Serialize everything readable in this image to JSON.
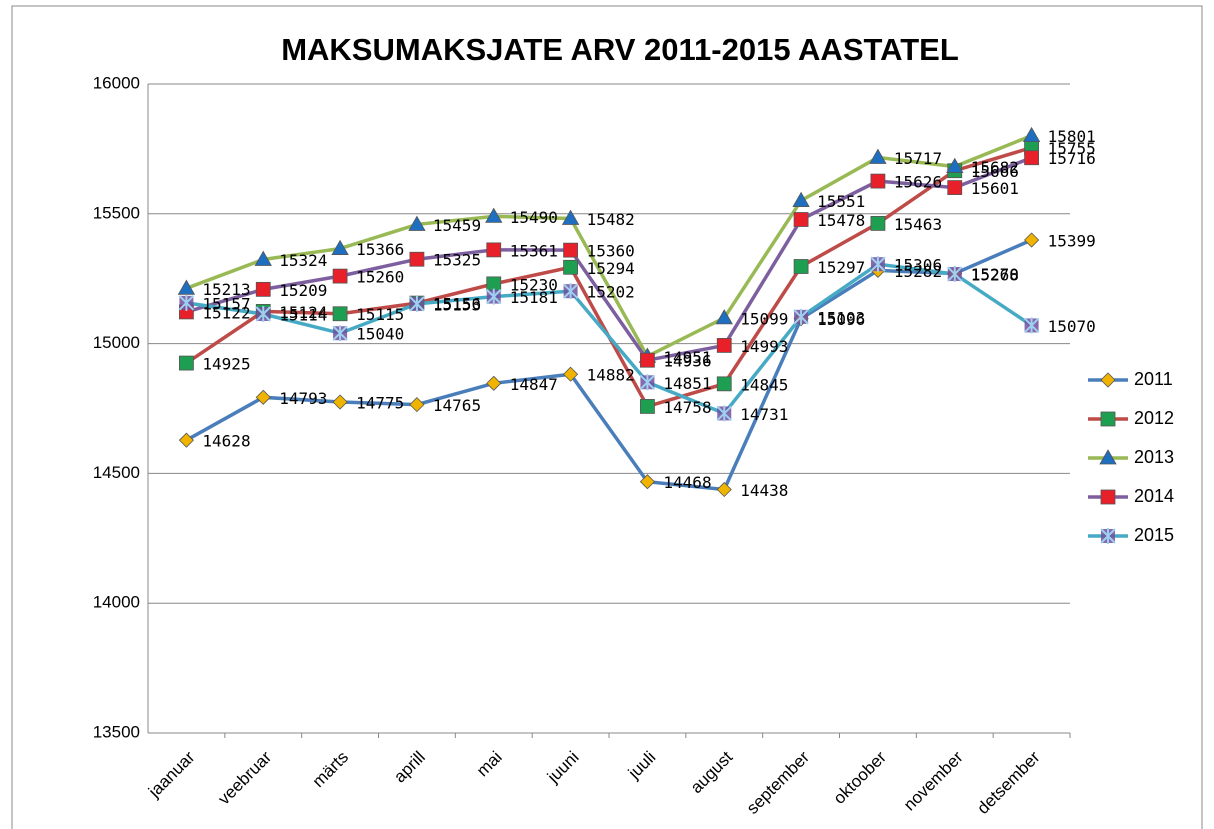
{
  "chart_data": {
    "type": "line",
    "title": "MAKSUMAKSJATE ARV 2011-2015 AASTATEL",
    "categories": [
      "jaanuar",
      "veebruar",
      "märts",
      "aprill",
      "mai",
      "juuni",
      "juuli",
      "august",
      "september",
      "oktoober",
      "november",
      "detsember"
    ],
    "ylim": [
      13500,
      16000
    ],
    "yticks": [
      13500,
      14000,
      14500,
      15000,
      15500,
      16000
    ],
    "grid": true,
    "legend": "right",
    "series": [
      {
        "name": "2011",
        "color": "#4a7ebb",
        "marker": "diamond",
        "marker_color": "#f0b400",
        "values": [
          14628,
          14793,
          14775,
          14765,
          14847,
          14882,
          14468,
          14438,
          15096,
          15282,
          15270,
          15399
        ]
      },
      {
        "name": "2012",
        "color": "#be4b48",
        "marker": "square",
        "marker_color": "#1e9e50",
        "values": [
          14925,
          15124,
          15115,
          15156,
          15230,
          15294,
          14758,
          14845,
          15297,
          15463,
          15666,
          15755
        ]
      },
      {
        "name": "2013",
        "color": "#98b954",
        "marker": "triangle",
        "marker_color": "#1f6fc0",
        "values": [
          15213,
          15324,
          15366,
          15459,
          15490,
          15482,
          14951,
          15099,
          15551,
          15717,
          15682,
          15801
        ]
      },
      {
        "name": "2014",
        "color": "#7d5fa0",
        "marker": "square",
        "marker_color": "#e8202a",
        "values": [
          15122,
          15209,
          15260,
          15325,
          15361,
          15360,
          14936,
          14993,
          15478,
          15626,
          15601,
          15716
        ]
      },
      {
        "name": "2015",
        "color": "#46aac5",
        "marker": "star",
        "marker_color": "#7050a0",
        "values": [
          15157,
          15114,
          15040,
          15153,
          15181,
          15202,
          14851,
          14731,
          15103,
          15306,
          15268,
          15070
        ]
      }
    ]
  }
}
